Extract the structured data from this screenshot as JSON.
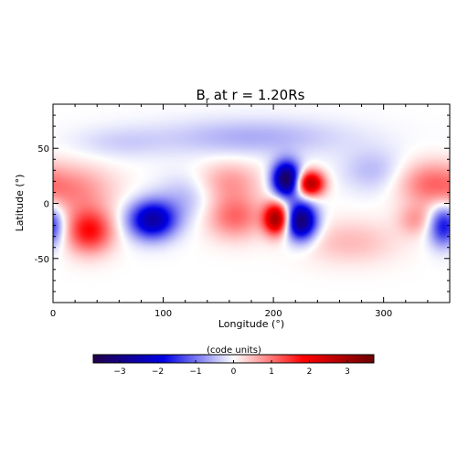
{
  "chart_data": {
    "type": "heatmap",
    "title": "B",
    "title_subscript": "r",
    "title_suffix": " at r = 1.20Rs",
    "xlabel": "Longitude (°)",
    "ylabel": "Latitude (°)",
    "xlim": [
      0,
      360
    ],
    "ylim": [
      -90,
      90
    ],
    "xticks": [
      0,
      100,
      200,
      300
    ],
    "yticks": [
      -50,
      0,
      50
    ],
    "colorbar": {
      "label": "(code units)",
      "range": [
        -3.7,
        3.7
      ],
      "ticks": [
        -3,
        -2,
        -1,
        0,
        1,
        2,
        3
      ],
      "colormap": [
        "#20004a",
        "#0000e6",
        "#ffffff",
        "#ff0000",
        "#6b0000"
      ]
    },
    "features": [
      {
        "lon": 212,
        "lat": 22,
        "value": -3.6,
        "sigma_lon": 9,
        "sigma_lat": 11
      },
      {
        "lon": 233,
        "lat": 18,
        "value": 3.0,
        "sigma_lon": 9,
        "sigma_lat": 8
      },
      {
        "lon": 203,
        "lat": -14,
        "value": 3.1,
        "sigma_lon": 8,
        "sigma_lat": 10
      },
      {
        "lon": 225,
        "lat": -16,
        "value": -3.3,
        "sigma_lon": 10,
        "sigma_lat": 12
      },
      {
        "lon": 90,
        "lat": -15,
        "value": -2.6,
        "sigma_lon": 15,
        "sigma_lat": 12
      },
      {
        "lon": 33,
        "lat": -25,
        "value": 1.8,
        "sigma_lon": 15,
        "sigma_lat": 14
      },
      {
        "lon": 20,
        "lat": 12,
        "value": 0.8,
        "sigma_lon": 25,
        "sigma_lat": 16
      },
      {
        "lon": 165,
        "lat": -12,
        "value": 1.1,
        "sigma_lon": 18,
        "sigma_lat": 14
      },
      {
        "lon": 160,
        "lat": 20,
        "value": 0.7,
        "sigma_lon": 20,
        "sigma_lat": 13
      },
      {
        "lon": 355,
        "lat": -20,
        "value": -1.9,
        "sigma_lon": 10,
        "sigma_lat": 13
      },
      {
        "lon": 340,
        "lat": 18,
        "value": 0.9,
        "sigma_lon": 20,
        "sigma_lat": 14
      },
      {
        "lon": 330,
        "lat": -15,
        "value": 0.7,
        "sigma_lon": 12,
        "sigma_lat": 10
      },
      {
        "lon": 180,
        "lat": 60,
        "value": -0.6,
        "sigma_lon": 60,
        "sigma_lat": 12
      },
      {
        "lon": 120,
        "lat": 5,
        "value": -0.5,
        "sigma_lon": 18,
        "sigma_lat": 15
      },
      {
        "lon": 270,
        "lat": -35,
        "value": 0.5,
        "sigma_lon": 30,
        "sigma_lat": 14
      },
      {
        "lon": 290,
        "lat": 30,
        "value": -0.5,
        "sigma_lon": 20,
        "sigma_lat": 14
      },
      {
        "lon": 60,
        "lat": 55,
        "value": -0.3,
        "sigma_lon": 30,
        "sigma_lat": 10
      }
    ]
  }
}
